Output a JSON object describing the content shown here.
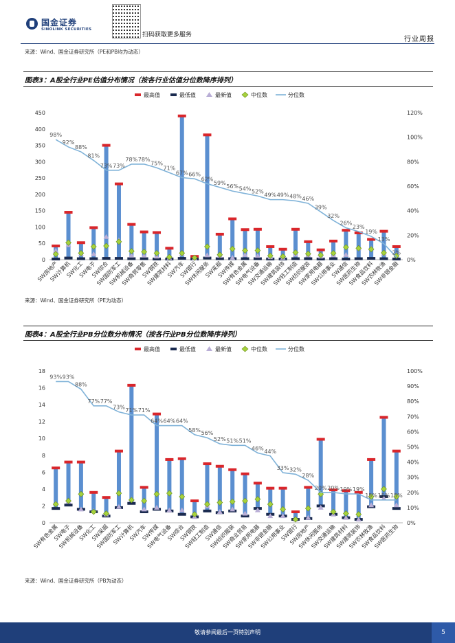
{
  "header": {
    "brand": "国金证券",
    "brand_en": "SINOLINK SECURITIES",
    "qr_text": "扫码获取更多服务",
    "section": "行业周报"
  },
  "source_top": "来源：Wind、国金证券研究所（PE和PB均为动态）",
  "figures": [
    {
      "title": "图表3：A股全行业PE估值分布情况（按各行业估值分位数降序排列）",
      "source": "来源：Wind、国金证券研究所（PE为动态）"
    },
    {
      "title": "图表4：A股全行业PB分位数分布情况（按各行业PB分位数降序排列）",
      "source": "来源：Wind、国金证券研究所（PB为动态）"
    }
  ],
  "footer": {
    "disclaimer": "敬请参阅最后一页特别声明",
    "page": "5"
  },
  "chart_data": [
    {
      "type": "bar",
      "legend": [
        "最高值",
        "最低值",
        "最新值",
        "中位数",
        "分位数"
      ],
      "categories": [
        "SW房地产",
        "SW计算机",
        "SW化工",
        "SW电子",
        "SW综合",
        "SW国防军工",
        "SW机械设备",
        "SW商贸零售",
        "SW钢铁",
        "SW建筑材料",
        "SW汽车",
        "SW银行",
        "SW休闲服务",
        "SW采掘",
        "SW传媒",
        "SW有色金属",
        "SW电气设备",
        "SW交通运输",
        "SW建筑装饰",
        "SW轻工制造",
        "SW纺织服装",
        "SW家用电器",
        "SW公用事业",
        "SW通信",
        "SW医药生物",
        "SW食品饮料",
        "SW农林牧渔",
        "SW非银金融"
      ],
      "max": [
        42,
        145,
        52,
        98,
        350,
        232,
        108,
        85,
        83,
        35,
        440,
        10,
        382,
        78,
        125,
        92,
        93,
        40,
        32,
        93,
        55,
        30,
        57,
        90,
        82,
        62,
        87,
        40
      ],
      "min": [
        2,
        5,
        3,
        3,
        4,
        4,
        3,
        3,
        2,
        2,
        4,
        2,
        5,
        3,
        3,
        3,
        3,
        2,
        2,
        3,
        3,
        2,
        3,
        2,
        3,
        4,
        3,
        2
      ],
      "latest": [
        28,
        45,
        17,
        17,
        70,
        60,
        13,
        13,
        10,
        6,
        18,
        4,
        14,
        12,
        6,
        15,
        12,
        8,
        6,
        16,
        14,
        10,
        14,
        15,
        35,
        35,
        19,
        15
      ],
      "median": [
        17,
        52,
        20,
        40,
        42,
        55,
        26,
        24,
        20,
        8,
        20,
        6,
        40,
        15,
        33,
        28,
        28,
        12,
        10,
        22,
        18,
        14,
        20,
        38,
        35,
        32,
        21,
        12
      ],
      "percentile": [
        98,
        92,
        88,
        81,
        73,
        73,
        78,
        78,
        75,
        71,
        67,
        66,
        62,
        59,
        56,
        54,
        52,
        49,
        49,
        48,
        46,
        39,
        32,
        26,
        23,
        19,
        13,
        2
      ],
      "percentile_labels": [
        "98%",
        "92%",
        "88%",
        "81%",
        "73%",
        "73%",
        "78%",
        "78%",
        "75%",
        "71%",
        "67%",
        "66%",
        "62%",
        "59%",
        "56%",
        "54%",
        "52%",
        "49%",
        "49%",
        "48%",
        "46%",
        "39%",
        "32%",
        "26%",
        "23%",
        "19%",
        "13%",
        "2%"
      ],
      "ylim": [
        0,
        450
      ],
      "yticks": [
        0,
        50,
        100,
        150,
        200,
        250,
        300,
        350,
        400,
        450
      ],
      "y2lim": [
        0,
        120
      ],
      "y2ticks": [
        "0%",
        "20%",
        "40%",
        "60%",
        "80%",
        "100%",
        "120%"
      ]
    },
    {
      "type": "bar",
      "legend": [
        "最高值",
        "最低值",
        "最新值",
        "中位数",
        "分位数"
      ],
      "categories": [
        "SW有色金属",
        "SW电子",
        "SW机械设备",
        "SW化工",
        "SW采掘",
        "SW国防军工",
        "SW计算机",
        "SW汽车",
        "SW传媒",
        "SW电气设备",
        "SW综合",
        "SW钢铁",
        "SW轻工制造",
        "SW通信",
        "SW纺织服装",
        "SW商业贸易",
        "SW家用电器",
        "SW非银金融",
        "SW公用事业",
        "SW银行",
        "SW房地产",
        "SW休闲服务",
        "SW交通运输",
        "SW建筑材料",
        "SW建筑装饰",
        "SW农林牧渔",
        "SW食品饮料",
        "SW医药生物"
      ],
      "max": [
        6.5,
        7.2,
        7.2,
        3.6,
        3.0,
        8.5,
        16.3,
        4.2,
        12.9,
        7.5,
        7.6,
        2.6,
        7.0,
        6.7,
        6.3,
        5.8,
        4.7,
        4.1,
        4.1,
        1.3,
        4.2,
        9.9,
        3.9,
        3.8,
        3.6,
        7.5,
        12.5,
        8.5
      ],
      "min": [
        1.7,
        2.1,
        1.6,
        1.3,
        0.8,
        1.8,
        2.3,
        1.3,
        1.6,
        1.4,
        1.0,
        0.7,
        1.4,
        1.2,
        1.4,
        0.8,
        1.7,
        1.0,
        0.8,
        0.4,
        0.5,
        2.0,
        1.0,
        0.6,
        0.4,
        1.9,
        3.1,
        1.7
      ],
      "latest": [
        2.3,
        2.5,
        1.6,
        1.4,
        1.0,
        1.9,
        2.8,
        1.6,
        1.8,
        1.5,
        1.5,
        0.7,
        2.0,
        1.3,
        1.6,
        1.1,
        1.5,
        0.8,
        0.8,
        0.4,
        0.6,
        1.8,
        1.0,
        0.6,
        0.4,
        2.1,
        2.9,
        2.1
      ],
      "median": [
        2.2,
        2.6,
        3.4,
        1.3,
        1.1,
        3.5,
        2.7,
        2.6,
        3.4,
        3.5,
        3.1,
        1.0,
        2.2,
        2.4,
        2.5,
        2.6,
        2.8,
        2.2,
        1.6,
        0.4,
        1.7,
        3.4,
        1.3,
        1.1,
        1.0,
        3.1,
        4.0,
        3.1
      ],
      "percentile": [
        93,
        93,
        88,
        77,
        77,
        73,
        71,
        71,
        64,
        64,
        64,
        58,
        56,
        52,
        51,
        51,
        46,
        44,
        33,
        32,
        28,
        20,
        20,
        19,
        19,
        15,
        15,
        15
      ],
      "percentile_labels": [
        "93%",
        "93%",
        "88%",
        "77%",
        "77%",
        "73%",
        "71%",
        "71%",
        "64%",
        "64%",
        "64%",
        "58%",
        "56%",
        "52%",
        "51%",
        "51%",
        "46%",
        "44%",
        "33%",
        "32%",
        "28%",
        "20%",
        "20%",
        "19%",
        "19%",
        "15%",
        "15%",
        "15%"
      ],
      "ylim": [
        0,
        18
      ],
      "yticks": [
        0,
        2,
        4,
        6,
        8,
        10,
        12,
        14,
        16,
        18
      ],
      "y2lim": [
        0,
        100
      ],
      "y2ticks": [
        "0%",
        "10%",
        "20%",
        "30%",
        "40%",
        "50%",
        "60%",
        "70%",
        "80%",
        "90%",
        "100%"
      ]
    }
  ]
}
